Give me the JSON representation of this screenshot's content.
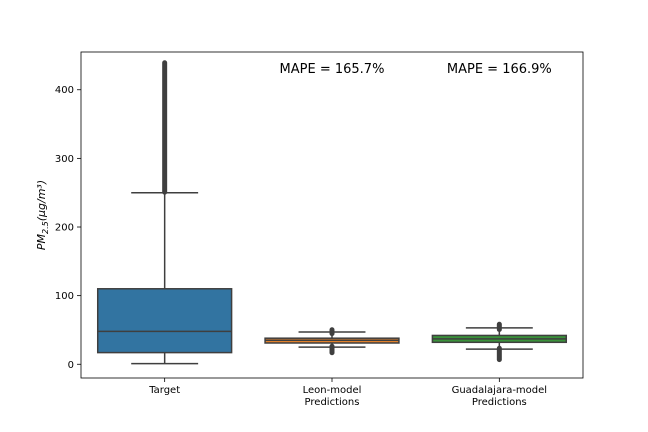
{
  "chart_data": {
    "type": "box",
    "ylabel_main": "PM",
    "ylabel_sub": "2.5",
    "ylabel_unit": "(μg/m³)",
    "ylim": [
      -20,
      455
    ],
    "yticks": [
      0,
      100,
      200,
      300,
      400
    ],
    "grid": false,
    "categories": [
      "Target",
      "Leon-model\nPredictions",
      "Guadalajara-model\nPredictions"
    ],
    "category_lines": [
      [
        "Target"
      ],
      [
        "Leon-model",
        "Predictions"
      ],
      [
        "Guadalajara-model",
        "Predictions"
      ]
    ],
    "colors": [
      "#3274a1",
      "#e1812c",
      "#3a923a"
    ],
    "boxes": [
      {
        "whisker_low": 1,
        "q1": 17,
        "median": 48,
        "q3": 110,
        "whisker_high": 250,
        "outlier_low": null,
        "outlier_high": [
          250,
          440
        ]
      },
      {
        "whisker_low": 25,
        "q1": 31,
        "median": 35,
        "q3": 38,
        "whisker_high": 47,
        "outlier_low": [
          16,
          27
        ],
        "outlier_high": [
          44,
          51
        ]
      },
      {
        "whisker_low": 22,
        "q1": 32,
        "median": 37,
        "q3": 42,
        "whisker_high": 53,
        "outlier_low": [
          6,
          24
        ],
        "outlier_high": [
          50,
          59
        ]
      }
    ],
    "annotations": [
      {
        "category_index": 1,
        "text": "MAPE = 165.7%"
      },
      {
        "category_index": 2,
        "text": "MAPE = 166.9%"
      }
    ]
  }
}
